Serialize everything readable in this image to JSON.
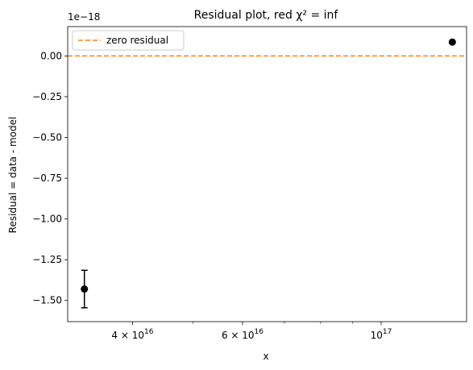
{
  "chart_data": {
    "type": "scatter",
    "title": "Residual plot, red χ² = inf",
    "xlabel": "x",
    "ylabel": "Residual = data - model",
    "x_scale": "log",
    "xlim": [
      3.15e+16,
      1.37e+17
    ],
    "ylim": [
      -1.63,
      0.18
    ],
    "y_offset_label": "1e−18",
    "y_ticks": [
      {
        "value": 0.0,
        "label": "0.00"
      },
      {
        "value": -0.25,
        "label": "−0.25"
      },
      {
        "value": -0.5,
        "label": "−0.50"
      },
      {
        "value": -0.75,
        "label": "−0.75"
      },
      {
        "value": -1.0,
        "label": "−1.00"
      },
      {
        "value": -1.25,
        "label": "−1.25"
      },
      {
        "value": -1.5,
        "label": "−1.50"
      }
    ],
    "x_major_ticks": [
      {
        "value": 4e+16,
        "base": "4 × 10",
        "exp": "16"
      },
      {
        "value": 6e+16,
        "base": "6 × 10",
        "exp": "16"
      },
      {
        "value": 1e+17,
        "base": "10",
        "exp": "17"
      }
    ],
    "x_minor_ticks": [
      5e+16,
      7e+16,
      8e+16,
      9e+16
    ],
    "series": [
      {
        "color": "#000000",
        "points": [
          {
            "x": 3.35e+16,
            "y": -1.43,
            "yerr": 0.115
          },
          {
            "x": 1.3e+17,
            "y": 0.085,
            "yerr": 0.0
          }
        ]
      }
    ],
    "reference_line": {
      "y": 0.0,
      "style": "dashed",
      "color": "#ff7f0e",
      "label": "zero residual"
    },
    "legend": {
      "position": "upper-left",
      "entries": [
        "zero residual"
      ]
    },
    "grid": false
  }
}
